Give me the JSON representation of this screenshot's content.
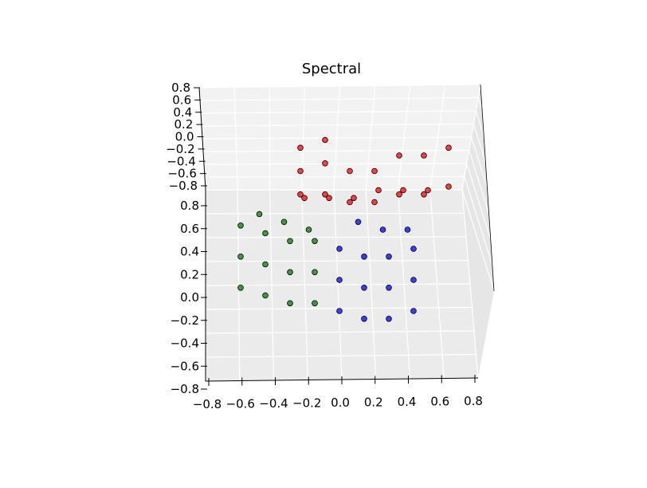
{
  "chart_data": {
    "type": "scatter",
    "projection": "3d",
    "title": "Spectral",
    "xlabel": "",
    "ylabel": "",
    "zlabel": "",
    "xlim": [
      -0.8,
      0.8
    ],
    "ylim": [
      -0.8,
      0.8
    ],
    "zlim": [
      -0.8,
      0.8
    ],
    "x_ticks": [
      "−0.8",
      "−0.6",
      "−0.4",
      "−0.2",
      "0.0",
      "0.2",
      "0.4",
      "0.6",
      "0.8"
    ],
    "y_ticks": [
      "0.8",
      "0.6",
      "0.4",
      "0.2",
      "0.0",
      "−0.2",
      "−0.4",
      "−0.6",
      "−0.8"
    ],
    "z_ticks": [
      "0.8",
      "0.6",
      "0.4",
      "0.2",
      "0.0",
      "−0.2",
      "−0.4",
      "−0.6",
      "−0.8"
    ],
    "grid": true,
    "legend": "none",
    "point_colors": {
      "cluster_red": "#ff0000",
      "cluster_green": "#008000",
      "cluster_blue": "#0000ff"
    },
    "series": [
      {
        "color": "#ff0000",
        "points": [
          [
            -0.4,
            0.35,
            0.55
          ],
          [
            -0.4,
            0.35,
            0.7
          ],
          [
            -0.4,
            0.35,
            0.85
          ],
          [
            -0.2,
            0.35,
            0.55
          ],
          [
            -0.2,
            0.35,
            0.75
          ],
          [
            -0.2,
            0.35,
            0.9
          ],
          [
            0.0,
            0.35,
            0.5
          ],
          [
            0.0,
            0.35,
            0.7
          ],
          [
            0.2,
            0.35,
            0.5
          ],
          [
            0.2,
            0.35,
            0.7
          ],
          [
            0.4,
            0.35,
            0.55
          ],
          [
            0.4,
            0.35,
            0.8
          ],
          [
            0.6,
            0.35,
            0.55
          ],
          [
            0.6,
            0.35,
            0.8
          ],
          [
            0.8,
            0.35,
            0.6
          ],
          [
            0.8,
            0.35,
            0.85
          ],
          [
            -0.4,
            0.6,
            0.45
          ],
          [
            -0.2,
            0.6,
            0.45
          ],
          [
            0.0,
            0.6,
            0.45
          ],
          [
            0.2,
            0.6,
            0.5
          ],
          [
            0.4,
            0.6,
            0.5
          ],
          [
            0.6,
            0.6,
            0.5
          ]
        ]
      },
      {
        "color": "#008000",
        "points": [
          [
            -0.8,
            -0.3,
            0.15
          ],
          [
            -0.8,
            -0.3,
            0.35
          ],
          [
            -0.8,
            -0.3,
            0.55
          ],
          [
            -0.6,
            -0.3,
            0.1
          ],
          [
            -0.6,
            -0.3,
            0.3
          ],
          [
            -0.6,
            -0.3,
            0.5
          ],
          [
            -0.4,
            -0.3,
            0.05
          ],
          [
            -0.4,
            -0.3,
            0.25
          ],
          [
            -0.4,
            -0.3,
            0.45
          ],
          [
            -0.2,
            -0.3,
            0.05
          ],
          [
            -0.2,
            -0.3,
            0.25
          ],
          [
            -0.2,
            -0.3,
            0.45
          ],
          [
            -0.7,
            0.1,
            0.5
          ],
          [
            -0.5,
            0.1,
            0.45
          ],
          [
            -0.3,
            0.1,
            0.4
          ]
        ]
      },
      {
        "color": "#0000ff",
        "points": [
          [
            0.0,
            -0.3,
            0.0
          ],
          [
            0.0,
            -0.3,
            0.2
          ],
          [
            0.0,
            -0.3,
            0.4
          ],
          [
            0.2,
            -0.3,
            -0.05
          ],
          [
            0.2,
            -0.3,
            0.15
          ],
          [
            0.2,
            -0.3,
            0.35
          ],
          [
            0.4,
            -0.3,
            -0.05
          ],
          [
            0.4,
            -0.3,
            0.15
          ],
          [
            0.4,
            -0.3,
            0.35
          ],
          [
            0.6,
            -0.3,
            0.0
          ],
          [
            0.6,
            -0.3,
            0.2
          ],
          [
            0.6,
            -0.3,
            0.4
          ],
          [
            0.1,
            0.1,
            0.45
          ],
          [
            0.3,
            0.1,
            0.4
          ],
          [
            0.5,
            0.1,
            0.4
          ]
        ]
      }
    ]
  }
}
